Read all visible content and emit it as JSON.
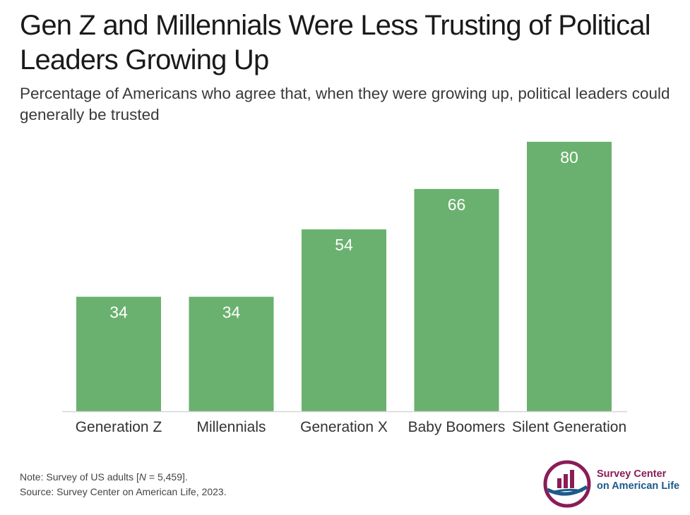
{
  "title": "Gen Z and Millennials Were Less Trusting of Political Leaders Growing Up",
  "subtitle": "Percentage of Americans who agree that, when they were growing up, political leaders could generally be trusted",
  "note_prefix": "Note: Survey of US adults [",
  "note_n": "N",
  "note_suffix": " = 5,459].",
  "source": "Source: Survey Center on American Life, 2023.",
  "logo": {
    "line1": "Survey Center",
    "line2": "on American Life"
  },
  "colors": {
    "bar": "#6ab16f",
    "label": "#ffffff",
    "axis": "#d6d6d6",
    "text": "#333333"
  },
  "chart_data": {
    "type": "bar",
    "categories": [
      "Generation Z",
      "Millennials",
      "Generation X",
      "Baby Boomers",
      "Silent Generation"
    ],
    "values": [
      34,
      34,
      54,
      66,
      80
    ],
    "title": "",
    "xlabel": "",
    "ylabel": "",
    "ylim": [
      0,
      80
    ],
    "grid": false,
    "data_labels": true
  }
}
